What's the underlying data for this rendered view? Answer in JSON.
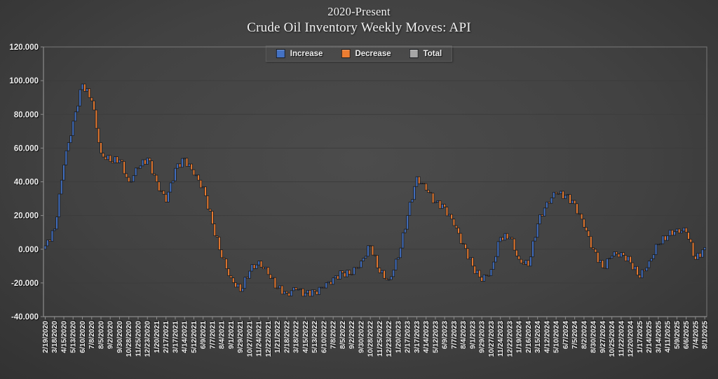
{
  "title": {
    "line1": "2020-Present",
    "line2": "Crude Oil Inventory Weekly Moves:  API"
  },
  "legend": [
    {
      "label": "Increase",
      "color": "#4472C4"
    },
    {
      "label": "Decrease",
      "color": "#ED7D31"
    },
    {
      "label": "Total",
      "color": "#A6A6A6"
    }
  ],
  "colors": {
    "background_center": "#4c4c4c",
    "background_edge": "#2c2c2c",
    "increase": "#4472C4",
    "decrease": "#ED7D31",
    "total": "#A6A6A6",
    "bar_outline": "#16181c",
    "grid": "#3c3c3c",
    "axis": "#8c8c8c",
    "text": "#f2f2f2"
  },
  "chart_data": {
    "type": "bar",
    "variant": "waterfall",
    "title": "2020-Present Crude Oil Inventory Weekly Moves: API",
    "xlabel": "",
    "ylabel": "",
    "ylim": [
      -40,
      120
    ],
    "ytick_step": 20,
    "ytick_labels": [
      "120.000",
      "100.000",
      "80.000",
      "60.000",
      "40.000",
      "20.000",
      "0.000",
      "-20.000",
      "-40.000"
    ],
    "grid": true,
    "legend_position": "top-center",
    "legend_entries": [
      "Increase",
      "Decrease",
      "Total"
    ],
    "frequency": "weekly",
    "weeks_total": 285,
    "weeks_per_tick": 4,
    "start_value": 0,
    "observed_extremes": {
      "max_cumulative": 100.5,
      "max_near": "6/17/2020",
      "min_cumulative": -27,
      "min_near": "2/18/2022"
    },
    "x_tick_labels": [
      "2/19/2020",
      "3/18/2020",
      "4/15/2020",
      "5/13/2020",
      "6/10/2020",
      "7/8/2020",
      "8/5/2020",
      "9/2/2020",
      "9/30/2020",
      "10/28/2020",
      "11/25/2020",
      "12/23/2020",
      "1/20/2021",
      "2/17/2021",
      "3/17/2021",
      "4/14/2021",
      "5/12/2021",
      "6/9/2021",
      "7/7/2021",
      "8/4/2021",
      "9/1/2021",
      "9/29/2021",
      "10/27/2021",
      "11/24/2021",
      "12/22/2021",
      "1/21/2022",
      "2/18/2022",
      "3/18/2022",
      "4/15/2022",
      "5/13/2022",
      "6/10/2022",
      "7/8/2022",
      "8/5/2022",
      "9/2/2022",
      "9/30/2022",
      "10/28/2022",
      "11/25/2022",
      "12/23/2022",
      "1/20/2023",
      "2/17/2023",
      "3/17/2023",
      "4/14/2023",
      "5/12/2023",
      "6/9/2023",
      "7/7/2023",
      "8/4/2023",
      "9/1/2023",
      "9/29/2023",
      "10/27/2023",
      "11/24/2023",
      "12/22/2023",
      "1/19/2024",
      "2/16/2024",
      "3/15/2024",
      "4/12/2024",
      "5/10/2024",
      "6/7/2024",
      "7/5/2024",
      "8/2/2024",
      "8/30/2024",
      "9/27/2024",
      "10/25/2024",
      "11/22/2024",
      "12/20/2024",
      "1/17/2025",
      "2/14/2025",
      "3/14/2025",
      "4/11/2025",
      "5/9/2025",
      "6/6/2025",
      "7/4/2025",
      "8/1/2025"
    ],
    "anchors": [
      {
        "date": "2/19/2020",
        "cumulative": 2
      },
      {
        "date": "3/18/2020",
        "cumulative": 12
      },
      {
        "date": "4/15/2020",
        "cumulative": 50
      },
      {
        "date": "5/13/2020",
        "cumulative": 76
      },
      {
        "date": "6/10/2020",
        "cumulative": 98
      },
      {
        "date": "7/8/2020",
        "cumulative": 88
      },
      {
        "date": "8/5/2020",
        "cumulative": 57
      },
      {
        "date": "9/2/2020",
        "cumulative": 52
      },
      {
        "date": "9/30/2020",
        "cumulative": 53
      },
      {
        "date": "10/28/2020",
        "cumulative": 40
      },
      {
        "date": "11/25/2020",
        "cumulative": 48
      },
      {
        "date": "12/23/2020",
        "cumulative": 54
      },
      {
        "date": "1/20/2021",
        "cumulative": 40
      },
      {
        "date": "2/17/2021",
        "cumulative": 28
      },
      {
        "date": "3/17/2021",
        "cumulative": 48
      },
      {
        "date": "4/14/2021",
        "cumulative": 54
      },
      {
        "date": "5/12/2021",
        "cumulative": 44
      },
      {
        "date": "6/9/2021",
        "cumulative": 37
      },
      {
        "date": "7/7/2021",
        "cumulative": 15
      },
      {
        "date": "8/4/2021",
        "cumulative": -5
      },
      {
        "date": "9/1/2021",
        "cumulative": -17
      },
      {
        "date": "9/29/2021",
        "cumulative": -25
      },
      {
        "date": "10/27/2021",
        "cumulative": -13
      },
      {
        "date": "11/24/2021",
        "cumulative": -7
      },
      {
        "date": "12/22/2021",
        "cumulative": -15
      },
      {
        "date": "1/21/2022",
        "cumulative": -23
      },
      {
        "date": "2/18/2022",
        "cumulative": -26
      },
      {
        "date": "3/18/2022",
        "cumulative": -24
      },
      {
        "date": "4/15/2022",
        "cumulative": -26
      },
      {
        "date": "5/13/2022",
        "cumulative": -25
      },
      {
        "date": "6/10/2022",
        "cumulative": -23
      },
      {
        "date": "7/8/2022",
        "cumulative": -17
      },
      {
        "date": "8/5/2022",
        "cumulative": -14
      },
      {
        "date": "9/2/2022",
        "cumulative": -15
      },
      {
        "date": "9/30/2022",
        "cumulative": -7
      },
      {
        "date": "10/28/2022",
        "cumulative": 2
      },
      {
        "date": "11/25/2022",
        "cumulative": -14
      },
      {
        "date": "12/23/2022",
        "cumulative": -18
      },
      {
        "date": "1/20/2023",
        "cumulative": -5
      },
      {
        "date": "2/17/2023",
        "cumulative": 20
      },
      {
        "date": "3/17/2023",
        "cumulative": 43
      },
      {
        "date": "4/14/2023",
        "cumulative": 35
      },
      {
        "date": "5/12/2023",
        "cumulative": 28
      },
      {
        "date": "6/9/2023",
        "cumulative": 25
      },
      {
        "date": "7/7/2023",
        "cumulative": 14
      },
      {
        "date": "8/4/2023",
        "cumulative": 3
      },
      {
        "date": "9/1/2023",
        "cumulative": -10
      },
      {
        "date": "9/29/2023",
        "cumulative": -19
      },
      {
        "date": "10/27/2023",
        "cumulative": -12
      },
      {
        "date": "11/24/2023",
        "cumulative": 7
      },
      {
        "date": "12/22/2023",
        "cumulative": 7
      },
      {
        "date": "1/19/2024",
        "cumulative": -6
      },
      {
        "date": "2/16/2024",
        "cumulative": -10
      },
      {
        "date": "3/15/2024",
        "cumulative": 15
      },
      {
        "date": "4/12/2024",
        "cumulative": 28
      },
      {
        "date": "5/10/2024",
        "cumulative": 33
      },
      {
        "date": "6/7/2024",
        "cumulative": 32
      },
      {
        "date": "7/5/2024",
        "cumulative": 27
      },
      {
        "date": "8/2/2024",
        "cumulative": 13
      },
      {
        "date": "8/30/2024",
        "cumulative": 0
      },
      {
        "date": "9/27/2024",
        "cumulative": -11
      },
      {
        "date": "10/25/2024",
        "cumulative": -4
      },
      {
        "date": "11/22/2024",
        "cumulative": -2
      },
      {
        "date": "12/20/2024",
        "cumulative": -8
      },
      {
        "date": "1/17/2025",
        "cumulative": -17
      },
      {
        "date": "2/14/2025",
        "cumulative": -7
      },
      {
        "date": "3/14/2025",
        "cumulative": 3
      },
      {
        "date": "4/11/2025",
        "cumulative": 8
      },
      {
        "date": "5/9/2025",
        "cumulative": 12
      },
      {
        "date": "6/6/2025",
        "cumulative": 10
      },
      {
        "date": "7/4/2025",
        "cumulative": -6
      },
      {
        "date": "8/1/2025",
        "cumulative": 1
      }
    ]
  }
}
